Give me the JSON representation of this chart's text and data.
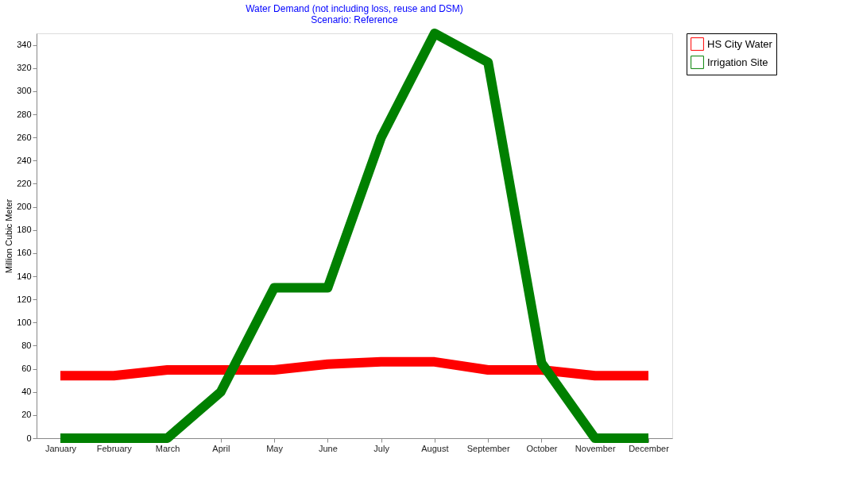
{
  "chart_data": {
    "type": "line",
    "title": "Water Demand (not including loss, reuse and DSM)",
    "subtitle": "Scenario: Reference",
    "ylabel": "Million Cubic Meter",
    "categories": [
      "January",
      "February",
      "March",
      "April",
      "May",
      "June",
      "July",
      "August",
      "September",
      "October",
      "November",
      "December"
    ],
    "series": [
      {
        "name": "HS City Water",
        "color": "#ff0000",
        "values": [
          54,
          54,
          59,
          59,
          59,
          64,
          66,
          66,
          59,
          59,
          54,
          54
        ]
      },
      {
        "name": "Irrigation Site",
        "color": "#008000",
        "values": [
          0,
          0,
          0,
          40,
          130,
          130,
          260,
          350,
          325,
          65,
          0,
          0
        ]
      }
    ],
    "ylim": [
      0,
      350
    ],
    "yticks": [
      0,
      20,
      40,
      60,
      80,
      100,
      120,
      140,
      160,
      180,
      200,
      220,
      240,
      260,
      280,
      300,
      320,
      340
    ],
    "grid": false,
    "legend": "top right",
    "marker": "none",
    "line_style": "solid"
  }
}
